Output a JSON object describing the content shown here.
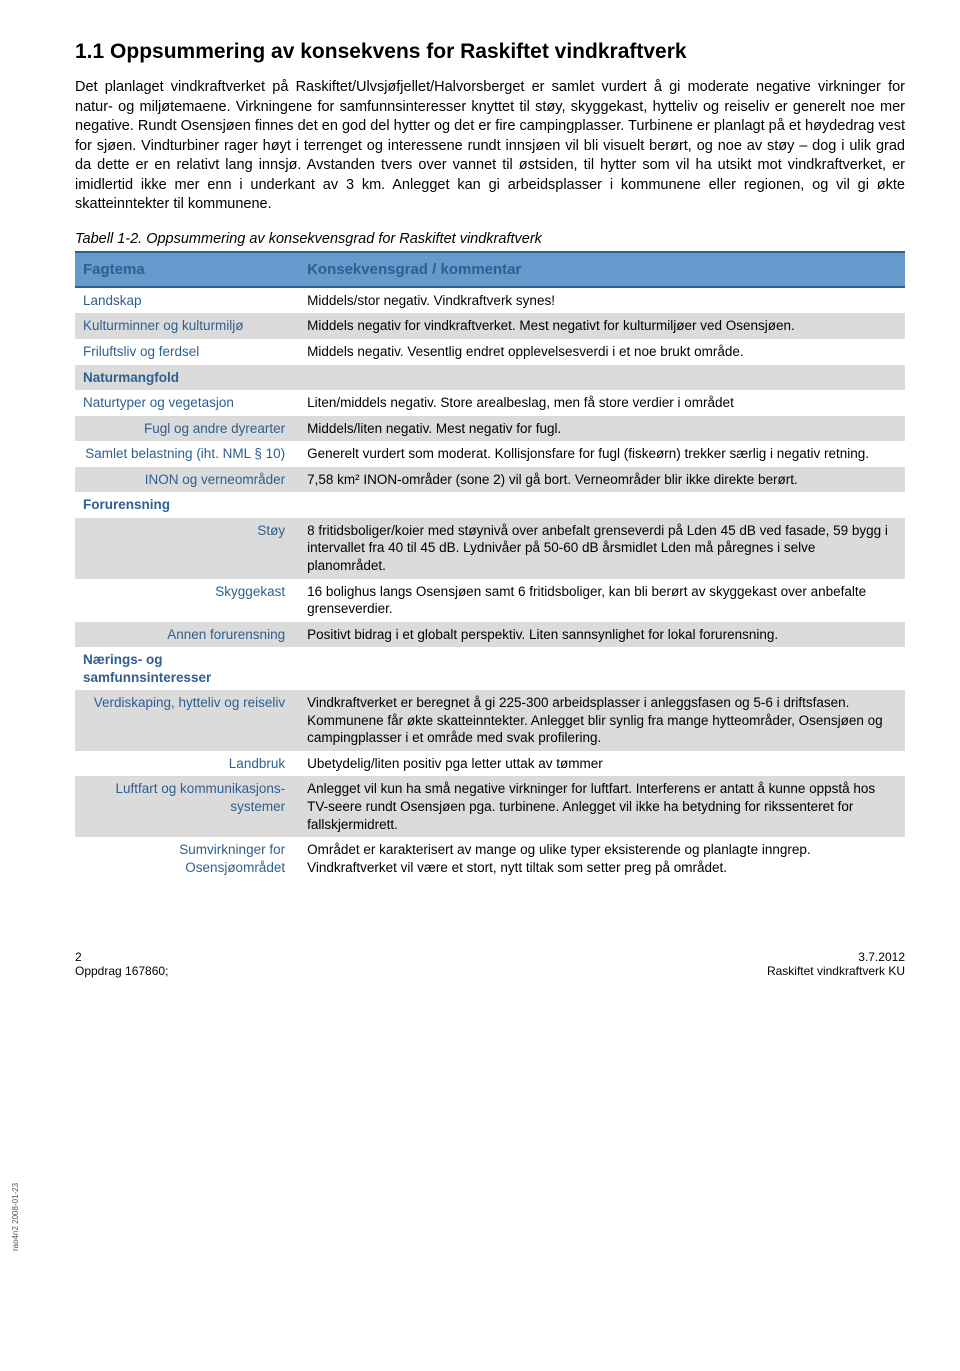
{
  "heading": "1.1   Oppsummering av konsekvens for Raskiftet vindkraftverk",
  "paragraph": "Det planlaget vindkraftverket på Raskiftet/Ulvsjøfjellet/Halvorsberget er samlet vurdert å gi moderate negative virkninger for natur- og miljøtemaene. Virkningene for samfunnsinteresser knyttet til støy, skyggekast, hytteliv og reiseliv er generelt noe mer negative. Rundt Osensjøen finnes det en god del hytter og det er fire campingplasser. Turbinene er planlagt på et høydedrag vest for sjøen. Vindturbiner rager høyt i terrenget og interessene rundt innsjøen vil bli visuelt berørt, og noe av støy – dog i ulik grad da dette er en relativt lang innsjø. Avstanden tvers over vannet til østsiden, til hytter som vil ha utsikt mot vindkraftverket, er imidlertid ikke mer enn i underkant av 3 km. Anlegget kan gi arbeidsplasser i kommunene eller regionen, og vil gi økte skatteinntekter til kommunene.",
  "tablecaption": "Tabell 1-2. Oppsummering av konsekvensgrad for Raskiftet vindkraftverk",
  "header": {
    "col1": "Fagtema",
    "col2": "Konsekvensgrad / kommentar"
  },
  "rows": [
    {
      "c1": "Landskap",
      "c2": "Middels/stor negativ. Vindkraftverk synes!",
      "zebra": "odd"
    },
    {
      "c1": "Kulturminner og kulturmiljø",
      "c2": "Middels negativ for vindkraftverket. Mest negativt for kulturmiljøer ved Osensjøen.",
      "zebra": "even"
    },
    {
      "c1": "Friluftsliv og ferdsel",
      "c2": "Middels negativ. Vesentlig endret opplevelsesverdi i et noe brukt område.",
      "zebra": "odd"
    },
    {
      "c1": "Naturmangfold",
      "c2": "",
      "zebra": "even",
      "section": true
    },
    {
      "c1": "Naturtyper og vegetasjon",
      "c2": "Liten/middels negativ. Store arealbeslag, men få store verdier i området",
      "zebra": "odd"
    },
    {
      "c1": "Fugl og andre dyrearter",
      "c2": "Middels/liten negativ. Mest negativ for fugl.",
      "zebra": "even",
      "indent": true
    },
    {
      "c1": "Samlet belastning (iht. NML § 10)",
      "c2": "Generelt vurdert som moderat. Kollisjonsfare for fugl (fiskeørn) trekker særlig i negativ retning.",
      "zebra": "odd",
      "indent": true
    },
    {
      "c1": "INON og verneområder",
      "c2": "7,58 km² INON-områder (sone 2) vil gå bort. Verneområder blir ikke direkte berørt.",
      "zebra": "even",
      "indent": true
    },
    {
      "c1": "Forurensning",
      "c2": "",
      "zebra": "odd",
      "section": true
    },
    {
      "c1": "Støy",
      "c2": "8 fritidsboliger/koier med støynivå over anbefalt grenseverdi på Lden 45 dB ved fasade, 59 bygg i intervallet fra 40 til 45 dB. Lydnivåer på 50-60 dB årsmidlet Lden må påregnes i selve planområdet.",
      "zebra": "even",
      "indent": true
    },
    {
      "c1": "Skyggekast",
      "c2": "16 bolighus langs Osensjøen samt 6 fritidsboliger, kan bli berørt av skyggekast over anbefalte grenseverdier.",
      "zebra": "odd",
      "indent": true
    },
    {
      "c1": "Annen forurensning",
      "c2": "Positivt bidrag i et globalt perspektiv. Liten sannsynlighet for lokal forurensning.",
      "zebra": "even",
      "indent": true
    },
    {
      "c1": "Nærings- og samfunnsinteresser",
      "c2": "",
      "zebra": "odd",
      "section": true
    },
    {
      "c1": "Verdiskaping, hytteliv og reiseliv",
      "c2": "Vindkraftverket er beregnet å gi 225-300 arbeidsplasser i anleggsfasen og 5-6 i driftsfasen. Kommunene får økte skatteinntekter. Anlegget blir synlig fra mange hytteområder, Osensjøen og campingplasser i et område med svak profilering.",
      "zebra": "even",
      "indent": true
    },
    {
      "c1": "Landbruk",
      "c2": "Ubetydelig/liten positiv pga letter uttak av tømmer",
      "zebra": "odd",
      "indent": true
    },
    {
      "c1": "Luftfart og kommunikasjons-systemer",
      "c2": "Anlegget vil kun ha små negative virkninger for luftfart. Interferens er antatt å kunne oppstå hos TV-seere rundt Osensjøen pga. turbinene. Anlegget vil ikke ha betydning for rikssenteret for fallskjermidrett.",
      "zebra": "even",
      "indent": true
    },
    {
      "c1": "Sumvirkninger for Osensjøområdet",
      "c2": "Området er karakterisert av mange og ulike typer eksisterende og planlagte inngrep. Vindkraftverket vil være et stort, nytt tiltak som setter preg på området.",
      "zebra": "odd",
      "indent": true
    }
  ],
  "footer": {
    "pagenum": "2",
    "oppdrag": "Oppdrag 167860;",
    "date": "3.7.2012",
    "project": "Raskiftet vindkraftverk KU"
  },
  "sidetext": "rao4n2 2008-01-23"
}
